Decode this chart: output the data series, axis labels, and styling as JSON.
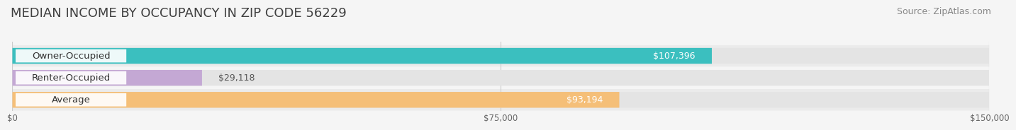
{
  "title": "MEDIAN INCOME BY OCCUPANCY IN ZIP CODE 56229",
  "source": "Source: ZipAtlas.com",
  "categories": [
    "Owner-Occupied",
    "Renter-Occupied",
    "Average"
  ],
  "values": [
    107396,
    29118,
    93194
  ],
  "labels": [
    "$107,396",
    "$29,118",
    "$93,194"
  ],
  "bar_colors": [
    "#3bbfbf",
    "#c4a8d4",
    "#f5bf78"
  ],
  "bar_bg_color": "#e4e4e4",
  "row_bg_colors": [
    "#ebebeb",
    "#f5f5f5",
    "#ebebeb"
  ],
  "xlim": [
    0,
    150000
  ],
  "xticks": [
    0,
    75000,
    150000
  ],
  "xtick_labels": [
    "$0",
    "$75,000",
    "$150,000"
  ],
  "background_color": "#f5f5f5",
  "title_fontsize": 13,
  "source_fontsize": 9,
  "value_fontsize": 9,
  "category_fontsize": 9.5
}
